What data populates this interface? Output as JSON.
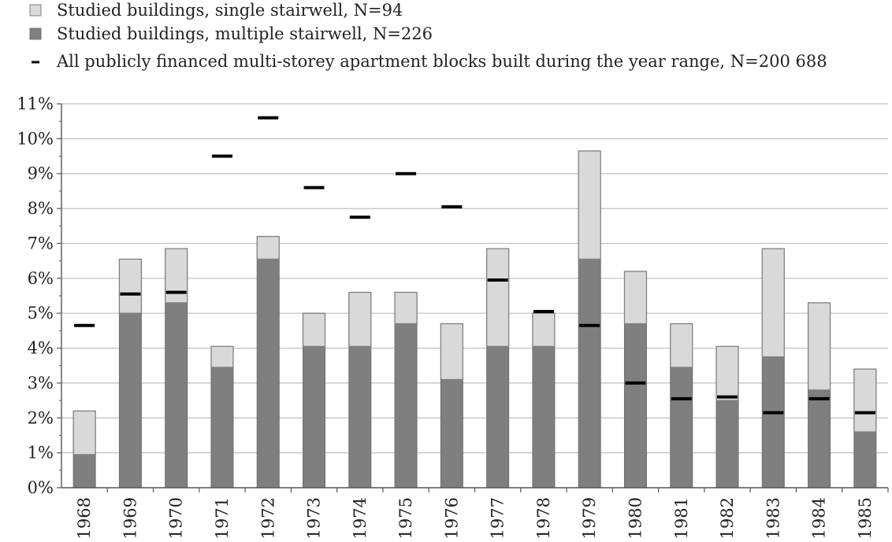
{
  "chart_data": {
    "type": "bar",
    "stacked": true,
    "categories": [
      "1968",
      "1969",
      "1970",
      "1971",
      "1972",
      "1973",
      "1974",
      "1975",
      "1976",
      "1977",
      "1978",
      "1979",
      "1980",
      "1981",
      "1982",
      "1983",
      "1984",
      "1985"
    ],
    "series": [
      {
        "name": "Studied buildings, multiple stairwell, N=226",
        "kind": "bar-base",
        "color": "#7f7f7f",
        "values": [
          0.95,
          5.0,
          5.3,
          3.45,
          6.55,
          4.05,
          4.05,
          4.7,
          3.1,
          4.05,
          4.05,
          6.55,
          4.7,
          3.45,
          2.5,
          3.75,
          2.8,
          1.6
        ]
      },
      {
        "name": "Studied buildings, single stairwell, N=94",
        "kind": "bar-stack",
        "color": "#d9d9d9",
        "values": [
          1.25,
          1.55,
          1.55,
          0.6,
          0.65,
          0.95,
          1.55,
          0.9,
          1.6,
          2.8,
          0.95,
          3.1,
          1.5,
          1.25,
          1.55,
          3.1,
          2.5,
          1.8
        ]
      },
      {
        "name": "All publicly financed multi-storey apartment blocks built during the year range, N=200 688",
        "kind": "marker",
        "color": "#000000",
        "values": [
          4.65,
          5.55,
          5.6,
          9.5,
          10.6,
          8.6,
          7.75,
          9.0,
          8.05,
          5.95,
          5.05,
          4.65,
          3.0,
          2.55,
          2.6,
          2.15,
          2.55,
          2.15
        ]
      }
    ],
    "legend_order": [
      1,
      0,
      2
    ],
    "ylim": [
      0,
      11
    ],
    "yticks": [
      "0%",
      "1%",
      "2%",
      "3%",
      "4%",
      "5%",
      "6%",
      "7%",
      "8%",
      "9%",
      "10%",
      "11%"
    ],
    "grid": true,
    "legend_position": "top-left",
    "title": "",
    "xlabel": "",
    "ylabel": ""
  }
}
